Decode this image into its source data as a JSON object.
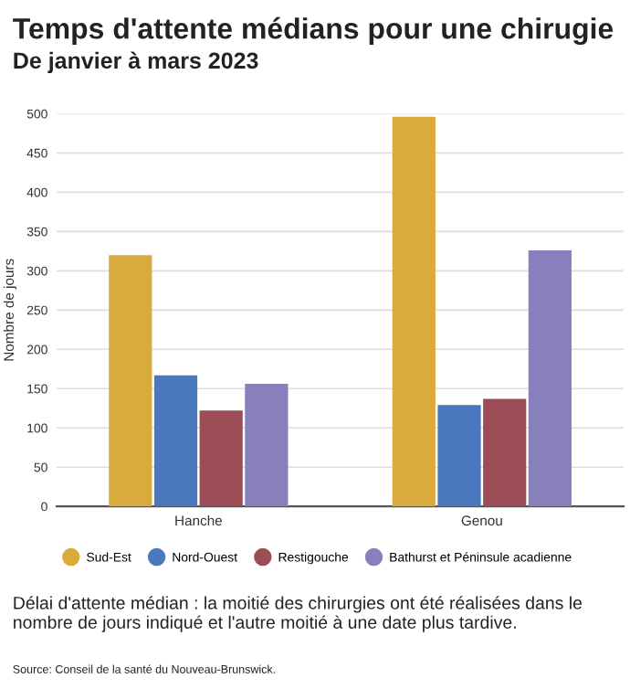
{
  "chart_data": {
    "type": "bar",
    "title": "Temps d'attente médians pour une chirugie",
    "subtitle": "De janvier à mars 2023",
    "ylabel": "Nombre de jours",
    "categories": [
      "Hanche",
      "Genou"
    ],
    "series": [
      {
        "name": "Sud-Est",
        "color": "#d9ab3c",
        "values": [
          320,
          496
        ]
      },
      {
        "name": "Nord-Ouest",
        "color": "#4a78be",
        "values": [
          167,
          129
        ]
      },
      {
        "name": "Restigouche",
        "color": "#9c4d55",
        "values": [
          122,
          137
        ]
      },
      {
        "name": "Bathurst et Péninsule acadienne",
        "color": "#8780bd",
        "values": [
          156,
          326
        ]
      }
    ],
    "ylim": [
      0,
      500
    ],
    "yticks": [
      0,
      50,
      100,
      150,
      200,
      250,
      300,
      350,
      400,
      450,
      500
    ],
    "grid": "y",
    "legend": "bottom",
    "annotations": [
      "Délai d'attente médian : la moitié des chirurgies ont été réalisées dans le nombre de jours indiqué et l'autre moitié à une date plus tardive.",
      "Source: Conseil de la santé du Nouveau-Brunswick."
    ]
  }
}
